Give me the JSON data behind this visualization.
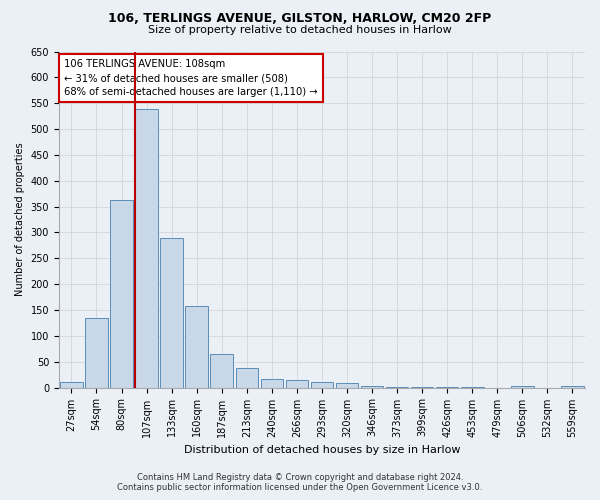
{
  "title_line1": "106, TERLINGS AVENUE, GILSTON, HARLOW, CM20 2FP",
  "title_line2": "Size of property relative to detached houses in Harlow",
  "xlabel": "Distribution of detached houses by size in Harlow",
  "ylabel": "Number of detached properties",
  "categories": [
    "27sqm",
    "54sqm",
    "80sqm",
    "107sqm",
    "133sqm",
    "160sqm",
    "187sqm",
    "213sqm",
    "240sqm",
    "266sqm",
    "293sqm",
    "320sqm",
    "346sqm",
    "373sqm",
    "399sqm",
    "426sqm",
    "453sqm",
    "479sqm",
    "506sqm",
    "532sqm",
    "559sqm"
  ],
  "values": [
    10,
    135,
    362,
    538,
    290,
    158,
    65,
    38,
    17,
    15,
    10,
    8,
    4,
    2,
    2,
    2,
    1,
    0,
    4,
    0,
    3
  ],
  "bar_color": "#c8d8e8",
  "bar_edge_color": "#5b8db8",
  "highlight_index": 3,
  "highlight_line_color": "#bb0000",
  "ylim": [
    0,
    650
  ],
  "yticks": [
    0,
    50,
    100,
    150,
    200,
    250,
    300,
    350,
    400,
    450,
    500,
    550,
    600,
    650
  ],
  "annotation_text": "106 TERLINGS AVENUE: 108sqm\n← 31% of detached houses are smaller (508)\n68% of semi-detached houses are larger (1,110) →",
  "annotation_box_facecolor": "#ffffff",
  "annotation_box_edgecolor": "#cc0000",
  "footer_line1": "Contains HM Land Registry data © Crown copyright and database right 2024.",
  "footer_line2": "Contains public sector information licensed under the Open Government Licence v3.0.",
  "grid_color": "#cccccc",
  "bg_color": "#eaf0f6",
  "title_fontsize": 9,
  "subtitle_fontsize": 8,
  "tick_fontsize": 7,
  "ylabel_fontsize": 7,
  "xlabel_fontsize": 8
}
